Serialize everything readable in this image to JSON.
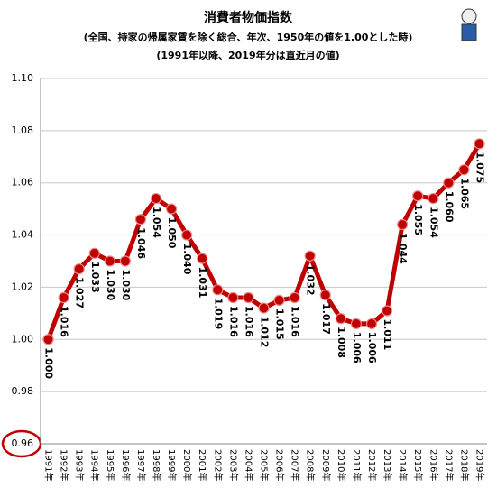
{
  "chart_data": {
    "type": "line",
    "title": "消費者物価指数",
    "subtitle": [
      "(全国、持家の帰属家賃を除く総合、年次、1950年の値を1.00とした時)",
      "(1991年以降、2019年分は直近月の値)"
    ],
    "categories": [
      "1991年",
      "1992年",
      "1993年",
      "1994年",
      "1995年",
      "1996年",
      "1997年",
      "1998年",
      "1999年",
      "2000年",
      "2001年",
      "2002年",
      "2003年",
      "2004年",
      "2005年",
      "2006年",
      "2007年",
      "2008年",
      "2009年",
      "2010年",
      "2011年",
      "2012年",
      "2013年",
      "2014年",
      "2015年",
      "2016年",
      "2017年",
      "2018年",
      "2019年"
    ],
    "values": [
      1.0,
      1.016,
      1.027,
      1.033,
      1.03,
      1.03,
      1.046,
      1.054,
      1.05,
      1.04,
      1.031,
      1.019,
      1.016,
      1.016,
      1.012,
      1.015,
      1.016,
      1.032,
      1.017,
      1.008,
      1.006,
      1.006,
      1.011,
      1.044,
      1.055,
      1.054,
      1.06,
      1.065,
      1.075
    ],
    "value_labels": [
      "1.000",
      "1.016",
      "1.027",
      "1.033",
      "1.030",
      "1.030",
      "1.046",
      "1.054",
      "1.050",
      "1.040",
      "1.031",
      "1.019",
      "1.016",
      "1.016",
      "1.012",
      "1.015",
      "1.016",
      "1.032",
      "1.017",
      "1.008",
      "1.006",
      "1.006",
      "1.011",
      "1.044",
      "1.055",
      "1.054",
      "1.060",
      "1.065",
      "1.075"
    ],
    "color": "#c00000",
    "ylim": [
      0.96,
      1.1
    ],
    "yticks": [
      0.96,
      0.98,
      {
        "value": 1,
        "label": "1.00"
      },
      1.02,
      1.04,
      1.06,
      1.08,
      {
        "value": 1.1,
        "label": "1.10"
      }
    ],
    "grid": true
  }
}
